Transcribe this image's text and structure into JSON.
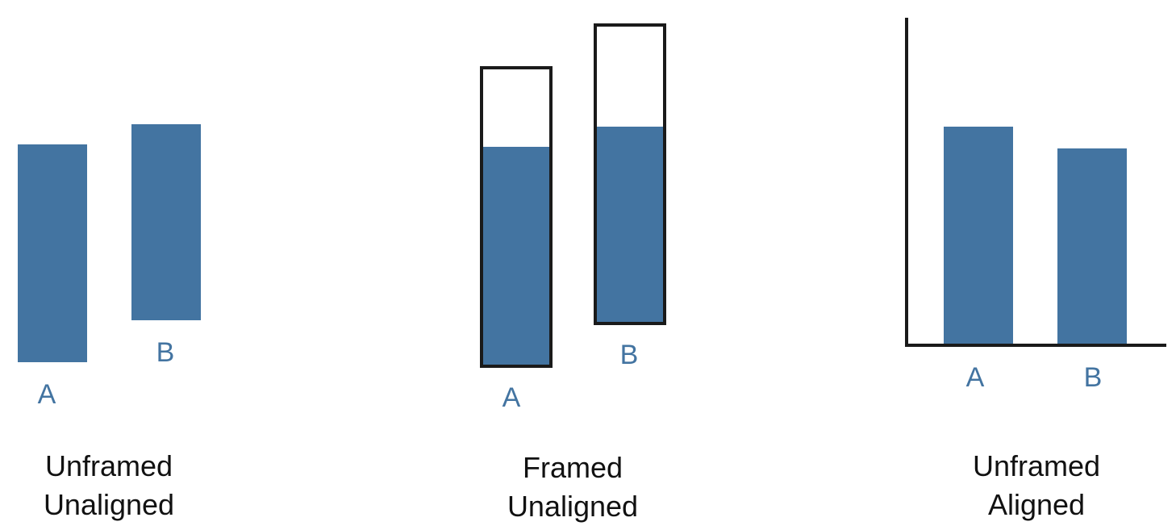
{
  "colors": {
    "bar_fill": "#4374a1",
    "frame_stroke": "#1a1a1a",
    "label_color": "#4374a1",
    "caption_color": "#111111"
  },
  "panels": [
    {
      "id": "unframed-unaligned",
      "caption_line1": "Unframed",
      "caption_line2": "Unaligned",
      "framed": false,
      "aligned": false,
      "bars": [
        {
          "label": "A"
        },
        {
          "label": "B"
        }
      ]
    },
    {
      "id": "framed-unaligned",
      "caption_line1": "Framed",
      "caption_line2": "Unaligned",
      "framed": true,
      "aligned": false,
      "bars": [
        {
          "label": "A",
          "fill_fraction": 0.73
        },
        {
          "label": "B",
          "fill_fraction": 0.66
        }
      ]
    },
    {
      "id": "unframed-aligned",
      "caption_line1": "Unframed",
      "caption_line2": "Aligned",
      "framed": false,
      "aligned": true,
      "bars": [
        {
          "label": "A"
        },
        {
          "label": "B"
        }
      ]
    }
  ]
}
